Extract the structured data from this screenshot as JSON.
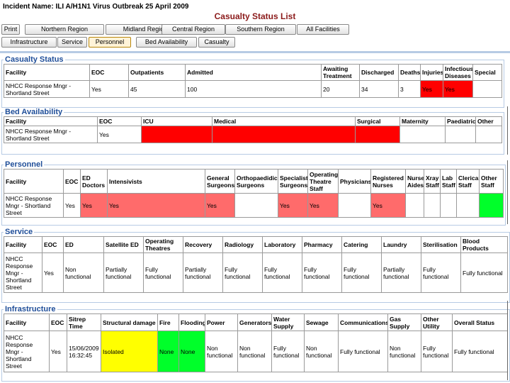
{
  "header": {
    "incident": "Incident Name: ILI A/H1N1 Virus Outbreak 25 April 2009",
    "title": "Casualty Status List"
  },
  "nav": {
    "row1": [
      "Print",
      "Northern Region",
      "Midland Region",
      "Central Region",
      "Southern Region",
      "All Facilities"
    ],
    "row2": [
      "Infrastructure",
      "Service",
      "Personnel",
      "Bed Availability",
      "Casualty"
    ],
    "active": "Personnel"
  },
  "colors": {
    "red": "#ff0000",
    "pink": "#ff6b6b",
    "yellow": "#ffff00",
    "green": "#00ff2a",
    "section_heading": "#1f4e99",
    "page_title": "#8b1a1a"
  },
  "casualty": {
    "title": "Casualty Status",
    "headers": [
      "Facility",
      "EOC",
      "Outpatients",
      "Admitted",
      "Awaiting Treatment",
      "Discharged",
      "Deaths",
      "Injuries",
      "Infectious Diseases",
      "Special"
    ],
    "row": [
      "NHCC Response Mngr - Shortland Street",
      "Yes",
      "45",
      "100",
      "20",
      "34",
      "3",
      "Yes",
      "Yes",
      ""
    ]
  },
  "beds": {
    "title": "Bed Availability",
    "headers": [
      "Facility",
      "EOC",
      "ICU",
      "Medical",
      "Surgical",
      "Maternity",
      "Paediatric",
      "Other"
    ],
    "row": [
      "NHCC Response Mngr - Shortland Street",
      "Yes",
      "",
      "",
      "",
      "",
      "",
      ""
    ]
  },
  "personnel": {
    "title": "Personnel",
    "headers": [
      "Facility",
      "EOC",
      "ED Doctors",
      "Intensivists",
      "General Surgeons",
      "Orthopaedidic Surgeons",
      "Specialist Surgeons",
      "Operating Theatre Staff",
      "Physicians",
      "Registered Nurses",
      "Nurse Aides",
      "Xray Staff",
      "Lab Staff",
      "Clerical Staff",
      "Other Staff"
    ],
    "row": [
      "NHCC Response Mngr - Shortland Street",
      "Yes",
      "Yes",
      "Yes",
      "Yes",
      "",
      "Yes",
      "Yes",
      "",
      "Yes",
      "",
      "",
      "",
      "",
      ""
    ]
  },
  "service": {
    "title": "Service",
    "headers": [
      "Facility",
      "EOC",
      "ED",
      "Satellite ED",
      "Operating Theatres",
      "Recovery",
      "Radiology",
      "Laboratory",
      "Pharmacy",
      "Catering",
      "Laundry",
      "Sterilisation",
      "Blood Products"
    ],
    "row": [
      "NHCC Response Mngr - Shortland Street",
      "Yes",
      "Non functional",
      "Partially functional",
      "Fully functional",
      "Partially functional",
      "Fully functional",
      "Fully functional",
      "Fully functional",
      "Fully functional",
      "Partially functional",
      "Fully functional",
      "Fully functional"
    ]
  },
  "infrastructure": {
    "title": "Infrastructure",
    "headers": [
      "Facility",
      "EOC",
      "Sitrep Time",
      "Structural damage",
      "Fire",
      "Flooding",
      "Power",
      "Generators",
      "Water Supply",
      "Sewage",
      "Communications",
      "Gas Supply",
      "Other Utility",
      "Overall Status"
    ],
    "row": [
      "NHCC Response Mngr - Shortland Street",
      "Yes",
      "15/06/2009 16:32:45",
      "Isolated",
      "None",
      "None",
      "Non functional",
      "Non functional",
      "Fully functional",
      "Non functional",
      "Fully functional",
      "Non functional",
      "Fully functional",
      "Fully functional"
    ]
  }
}
